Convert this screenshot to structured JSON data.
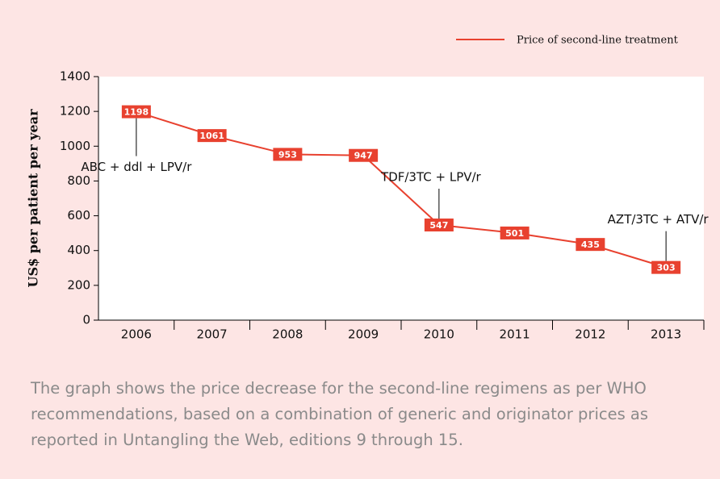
{
  "chart_data": {
    "type": "line",
    "legend": "Price of second-line treatment",
    "y_axis_label": "US$ per patient per year",
    "categories": [
      "2006",
      "2007",
      "2008",
      "2009",
      "2010",
      "2011",
      "2012",
      "2013"
    ],
    "series": [
      {
        "name": "Price of second-line treatment",
        "color": "#e8412f",
        "values": [
          1198,
          1061,
          953,
          947,
          547,
          501,
          435,
          303
        ]
      }
    ],
    "ylim": [
      0,
      1400
    ],
    "yticks": [
      0,
      200,
      400,
      600,
      800,
      1000,
      1200,
      1400
    ],
    "grid": false,
    "annotations": [
      "ABC + ddl + LPV/r",
      "TDF/3TC + LPV/r",
      "AZT/3TC + ATV/r"
    ],
    "caption": "The graph shows the price decrease for the second-line regimens as per WHO recommendations, based on a combination of generic and originator prices as reported in Untangling the Web, editions 9 through 15."
  }
}
